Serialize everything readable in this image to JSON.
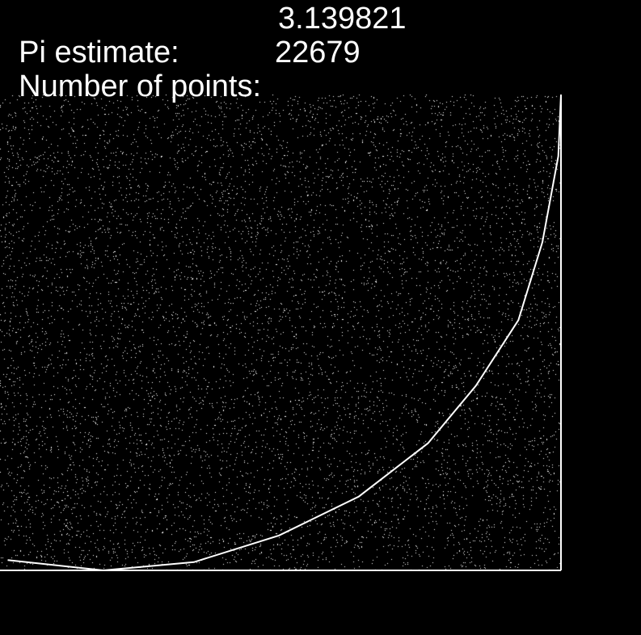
{
  "readout": {
    "pi_label": "Pi estimate:",
    "pi_value": "3.139821",
    "points_label": "Number of points:",
    "points_value": "22679"
  },
  "colors": {
    "background": "#000000",
    "foreground": "#ffffff"
  },
  "chart_data": {
    "type": "scatter",
    "point_count": 22679,
    "x_range": [
      0,
      1
    ],
    "y_range": [
      0,
      1
    ],
    "point_color": "#ffffff",
    "curve": {
      "type": "line",
      "color": "#ffffff",
      "description_source": "quarter circle arc drawn as a polyline",
      "x": [
        -0.18,
        0.0,
        0.17,
        0.33,
        0.48,
        0.61,
        0.7,
        0.78,
        0.825,
        0.855,
        0.86
      ],
      "y": [
        0.025,
        0.0,
        0.02,
        0.085,
        0.18,
        0.31,
        0.45,
        0.61,
        0.8,
        1.01,
        1.16
      ]
    }
  }
}
